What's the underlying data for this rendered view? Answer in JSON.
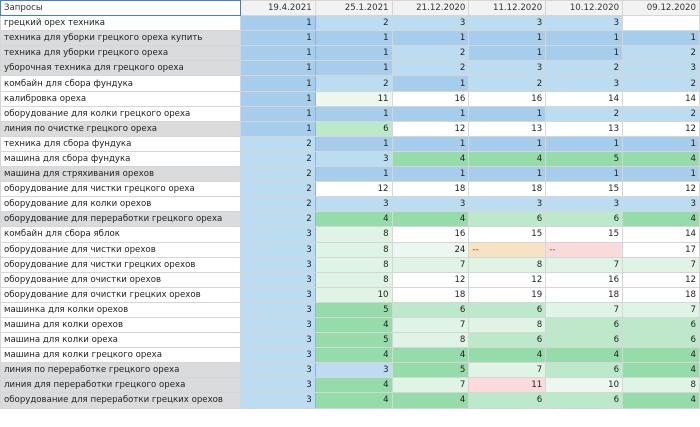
{
  "header": {
    "query_label": "Запросы",
    "dates": [
      "19.4.2021",
      "25.1.2021",
      "21.12.2020",
      "11.12.2020",
      "10.12.2020",
      "09.12.2020"
    ]
  },
  "colors": {
    "blue_strong": "#a6cdeb",
    "blue_mid": "#bcdcf2",
    "blue_light": "#d8eaf8",
    "green_light": "#dff4e4",
    "green_mid": "#bde9cb",
    "green_strong": "#96dcab",
    "green_pale": "#ecf8ef",
    "peach": "#f7e2c2",
    "pink": "#fadada",
    "white": "#ffffff"
  },
  "rows": [
    {
      "query": "грецкий орех техника",
      "shade": "w",
      "cells": [
        {
          "v": "1",
          "c": "blue_strong"
        },
        {
          "v": "2",
          "c": "blue_mid"
        },
        {
          "v": "3",
          "c": "blue_mid"
        },
        {
          "v": "3",
          "c": "blue_mid"
        },
        {
          "v": "3",
          "c": "blue_mid"
        },
        {
          "v": "",
          "c": "white"
        }
      ]
    },
    {
      "query": "техника для уборки грецкого ореха купить",
      "shade": "g",
      "cells": [
        {
          "v": "1",
          "c": "blue_strong"
        },
        {
          "v": "1",
          "c": "blue_strong"
        },
        {
          "v": "1",
          "c": "blue_strong"
        },
        {
          "v": "1",
          "c": "blue_strong"
        },
        {
          "v": "1",
          "c": "blue_strong"
        },
        {
          "v": "1",
          "c": "blue_strong"
        }
      ]
    },
    {
      "query": "техника для уборки грецкого ореха",
      "shade": "g",
      "cells": [
        {
          "v": "1",
          "c": "blue_strong"
        },
        {
          "v": "1",
          "c": "blue_strong"
        },
        {
          "v": "2",
          "c": "blue_mid"
        },
        {
          "v": "1",
          "c": "blue_strong"
        },
        {
          "v": "1",
          "c": "blue_strong"
        },
        {
          "v": "2",
          "c": "blue_mid"
        }
      ]
    },
    {
      "query": "уборочная техника для грецкого ореха",
      "shade": "g",
      "cells": [
        {
          "v": "1",
          "c": "blue_strong"
        },
        {
          "v": "1",
          "c": "blue_strong"
        },
        {
          "v": "2",
          "c": "blue_mid"
        },
        {
          "v": "3",
          "c": "blue_mid"
        },
        {
          "v": "2",
          "c": "blue_mid"
        },
        {
          "v": "3",
          "c": "blue_mid"
        }
      ]
    },
    {
      "query": "комбайн для сбора фундука",
      "shade": "w",
      "cells": [
        {
          "v": "1",
          "c": "blue_strong"
        },
        {
          "v": "2",
          "c": "blue_mid"
        },
        {
          "v": "1",
          "c": "blue_strong"
        },
        {
          "v": "2",
          "c": "blue_mid"
        },
        {
          "v": "3",
          "c": "blue_mid"
        },
        {
          "v": "2",
          "c": "blue_mid"
        }
      ]
    },
    {
      "query": "калибровка ореха",
      "shade": "w",
      "cells": [
        {
          "v": "1",
          "c": "blue_strong"
        },
        {
          "v": "11",
          "c": "green_pale"
        },
        {
          "v": "16",
          "c": "white"
        },
        {
          "v": "16",
          "c": "white"
        },
        {
          "v": "14",
          "c": "white"
        },
        {
          "v": "14",
          "c": "white"
        }
      ]
    },
    {
      "query": "оборудование для колки грецкого ореха",
      "shade": "w",
      "cells": [
        {
          "v": "1",
          "c": "blue_strong"
        },
        {
          "v": "1",
          "c": "blue_strong"
        },
        {
          "v": "1",
          "c": "blue_strong"
        },
        {
          "v": "1",
          "c": "blue_strong"
        },
        {
          "v": "2",
          "c": "blue_mid"
        },
        {
          "v": "2",
          "c": "blue_mid"
        }
      ]
    },
    {
      "query": "линия по очистке грецкого ореха",
      "shade": "g",
      "cells": [
        {
          "v": "1",
          "c": "blue_strong"
        },
        {
          "v": "6",
          "c": "green_mid"
        },
        {
          "v": "12",
          "c": "white"
        },
        {
          "v": "13",
          "c": "white"
        },
        {
          "v": "13",
          "c": "white"
        },
        {
          "v": "12",
          "c": "white"
        }
      ]
    },
    {
      "query": "техника для сбора фундука",
      "shade": "w",
      "cells": [
        {
          "v": "2",
          "c": "blue_mid"
        },
        {
          "v": "1",
          "c": "blue_strong"
        },
        {
          "v": "1",
          "c": "blue_strong"
        },
        {
          "v": "1",
          "c": "blue_strong"
        },
        {
          "v": "1",
          "c": "blue_strong"
        },
        {
          "v": "1",
          "c": "blue_strong"
        }
      ]
    },
    {
      "query": "машина для сбора фундука",
      "shade": "w",
      "cells": [
        {
          "v": "2",
          "c": "blue_mid"
        },
        {
          "v": "3",
          "c": "blue_mid"
        },
        {
          "v": "4",
          "c": "green_strong"
        },
        {
          "v": "4",
          "c": "green_strong"
        },
        {
          "v": "5",
          "c": "green_strong"
        },
        {
          "v": "4",
          "c": "green_strong"
        }
      ]
    },
    {
      "query": "машина для стряхивания орехов",
      "shade": "g",
      "cells": [
        {
          "v": "2",
          "c": "blue_mid"
        },
        {
          "v": "1",
          "c": "blue_strong"
        },
        {
          "v": "1",
          "c": "blue_strong"
        },
        {
          "v": "1",
          "c": "blue_strong"
        },
        {
          "v": "1",
          "c": "blue_strong"
        },
        {
          "v": "1",
          "c": "blue_strong"
        }
      ]
    },
    {
      "query": "оборудование для чистки грецкого ореха",
      "shade": "w",
      "cells": [
        {
          "v": "2",
          "c": "blue_mid"
        },
        {
          "v": "12",
          "c": "white"
        },
        {
          "v": "18",
          "c": "white"
        },
        {
          "v": "18",
          "c": "white"
        },
        {
          "v": "15",
          "c": "white"
        },
        {
          "v": "12",
          "c": "white"
        }
      ]
    },
    {
      "query": "оборудование для колки орехов",
      "shade": "w",
      "cells": [
        {
          "v": "2",
          "c": "blue_mid"
        },
        {
          "v": "3",
          "c": "blue_mid"
        },
        {
          "v": "3",
          "c": "blue_mid"
        },
        {
          "v": "3",
          "c": "blue_mid"
        },
        {
          "v": "3",
          "c": "blue_mid"
        },
        {
          "v": "3",
          "c": "blue_mid"
        }
      ]
    },
    {
      "query": "оборудование для переработки грецкого ореха",
      "shade": "g",
      "cells": [
        {
          "v": "2",
          "c": "blue_mid"
        },
        {
          "v": "4",
          "c": "green_strong"
        },
        {
          "v": "4",
          "c": "green_strong"
        },
        {
          "v": "6",
          "c": "green_mid"
        },
        {
          "v": "6",
          "c": "green_mid"
        },
        {
          "v": "4",
          "c": "green_strong"
        }
      ]
    },
    {
      "query": "комбайн для сбора яблок",
      "shade": "w",
      "cells": [
        {
          "v": "3",
          "c": "blue_mid"
        },
        {
          "v": "8",
          "c": "green_light"
        },
        {
          "v": "16",
          "c": "white"
        },
        {
          "v": "15",
          "c": "white"
        },
        {
          "v": "15",
          "c": "white"
        },
        {
          "v": "14",
          "c": "white"
        }
      ]
    },
    {
      "query": "оборудование для чистки орехов",
      "shade": "w",
      "cells": [
        {
          "v": "3",
          "c": "blue_mid"
        },
        {
          "v": "8",
          "c": "green_light"
        },
        {
          "v": "24",
          "c": "green_pale"
        },
        {
          "v": "--",
          "c": "peach"
        },
        {
          "v": "--",
          "c": "pink"
        },
        {
          "v": "17",
          "c": "white"
        }
      ]
    },
    {
      "query": "оборудование для чистки грецких орехов",
      "shade": "w",
      "cells": [
        {
          "v": "3",
          "c": "blue_mid"
        },
        {
          "v": "8",
          "c": "green_light"
        },
        {
          "v": "7",
          "c": "green_light"
        },
        {
          "v": "8",
          "c": "green_light"
        },
        {
          "v": "7",
          "c": "green_light"
        },
        {
          "v": "7",
          "c": "green_light"
        }
      ]
    },
    {
      "query": "оборудование для очистки орехов",
      "shade": "w",
      "cells": [
        {
          "v": "3",
          "c": "blue_mid"
        },
        {
          "v": "8",
          "c": "green_light"
        },
        {
          "v": "12",
          "c": "white"
        },
        {
          "v": "12",
          "c": "white"
        },
        {
          "v": "16",
          "c": "white"
        },
        {
          "v": "12",
          "c": "white"
        }
      ]
    },
    {
      "query": "оборудование для очистки грецких орехов",
      "shade": "w",
      "cells": [
        {
          "v": "3",
          "c": "blue_mid"
        },
        {
          "v": "10",
          "c": "green_light"
        },
        {
          "v": "18",
          "c": "white"
        },
        {
          "v": "19",
          "c": "white"
        },
        {
          "v": "18",
          "c": "white"
        },
        {
          "v": "18",
          "c": "white"
        }
      ]
    },
    {
      "query": "машинка для колки орехов",
      "shade": "w",
      "cells": [
        {
          "v": "3",
          "c": "blue_mid"
        },
        {
          "v": "5",
          "c": "green_strong"
        },
        {
          "v": "6",
          "c": "green_mid"
        },
        {
          "v": "6",
          "c": "green_mid"
        },
        {
          "v": "7",
          "c": "green_light"
        },
        {
          "v": "7",
          "c": "green_light"
        }
      ]
    },
    {
      "query": "машина для колки орехов",
      "shade": "w",
      "cells": [
        {
          "v": "3",
          "c": "blue_mid"
        },
        {
          "v": "4",
          "c": "green_strong"
        },
        {
          "v": "7",
          "c": "green_light"
        },
        {
          "v": "8",
          "c": "green_light"
        },
        {
          "v": "6",
          "c": "green_mid"
        },
        {
          "v": "6",
          "c": "green_mid"
        }
      ]
    },
    {
      "query": "машина для колки ореха",
      "shade": "w",
      "cells": [
        {
          "v": "3",
          "c": "blue_mid"
        },
        {
          "v": "5",
          "c": "green_strong"
        },
        {
          "v": "8",
          "c": "green_light"
        },
        {
          "v": "6",
          "c": "green_mid"
        },
        {
          "v": "6",
          "c": "green_mid"
        },
        {
          "v": "6",
          "c": "green_mid"
        }
      ]
    },
    {
      "query": "машина для колки грецкого ореха",
      "shade": "w",
      "cells": [
        {
          "v": "3",
          "c": "blue_mid"
        },
        {
          "v": "4",
          "c": "green_strong"
        },
        {
          "v": "4",
          "c": "green_strong"
        },
        {
          "v": "4",
          "c": "green_strong"
        },
        {
          "v": "4",
          "c": "green_strong"
        },
        {
          "v": "4",
          "c": "green_strong"
        }
      ]
    },
    {
      "query": "линия по переработке грецкого ореха",
      "shade": "g",
      "cells": [
        {
          "v": "3",
          "c": "blue_mid"
        },
        {
          "v": "3",
          "c": "blue_mid"
        },
        {
          "v": "5",
          "c": "green_strong"
        },
        {
          "v": "7",
          "c": "green_light"
        },
        {
          "v": "6",
          "c": "green_mid"
        },
        {
          "v": "4",
          "c": "green_strong"
        }
      ]
    },
    {
      "query": "линия для переработки грецкого ореха",
      "shade": "g",
      "cells": [
        {
          "v": "3",
          "c": "blue_mid"
        },
        {
          "v": "4",
          "c": "green_strong"
        },
        {
          "v": "7",
          "c": "green_light"
        },
        {
          "v": "11",
          "c": "pink"
        },
        {
          "v": "10",
          "c": "green_pale"
        },
        {
          "v": "8",
          "c": "green_light"
        }
      ]
    },
    {
      "query": "оборудование для переработки грецких орехов",
      "shade": "g",
      "cells": [
        {
          "v": "3",
          "c": "blue_mid"
        },
        {
          "v": "4",
          "c": "green_strong"
        },
        {
          "v": "4",
          "c": "green_strong"
        },
        {
          "v": "6",
          "c": "green_mid"
        },
        {
          "v": "6",
          "c": "green_mid"
        },
        {
          "v": "4",
          "c": "green_strong"
        }
      ]
    }
  ]
}
